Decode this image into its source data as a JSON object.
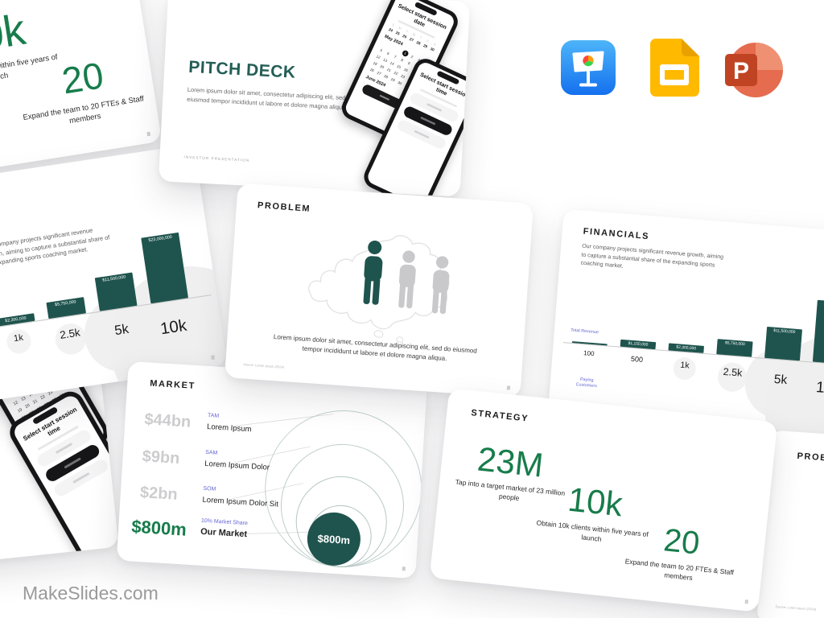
{
  "page": {
    "watermark": "MakeSlides.com"
  },
  "colors": {
    "heading_teal": "#235e56",
    "stat_green": "#177c4b",
    "bar_teal": "#1f544e",
    "label_purple": "#6466d3",
    "value_gray": "#cdcdcf"
  },
  "icons": {
    "keynote": "apple-keynote",
    "google_slides": "google-slides",
    "powerpoint": "microsoft-powerpoint",
    "powerpoint_letter": "P"
  },
  "slides": {
    "cover": {
      "title": "PITCH DECK",
      "body": "Lorem ipsum dolor sit amet, consectetur adipiscing elit, sed do eiusmod tempor incididunt ut labore et dolore magna aliqua",
      "footer": "INVESTOR PRESENTATION",
      "phone_date": {
        "title": "Select start session date",
        "month_current": "May 2024",
        "month_next": "June 2024"
      },
      "phone_time": {
        "title": "Select start session time"
      }
    },
    "problem": {
      "title": "PROBLEM",
      "body": "Lorem ipsum dolor sit amet, consectetur adipiscing elit, sed do eiusmod tempor incididunt ut labore et dolore magna aliqua.",
      "source": "Source: Lorem Ipsum (2024)"
    },
    "financials": {
      "title": "FINANCIALS",
      "body": "Our company projects significant revenue growth, aiming to capture a substantial share of the expanding sports coaching market.",
      "y_label": "Total Revenue",
      "x_label": "Paying Customers",
      "chart_data": {
        "type": "bar",
        "categories": [
          "100",
          "500",
          "1k",
          "2.5k",
          "5k",
          "10k"
        ],
        "values": [
          230000,
          1150000,
          2300000,
          5750000,
          11500000,
          23000000
        ],
        "value_labels": [
          "$230,000",
          "$1,150,000",
          "$2,300,000",
          "$5,750,000",
          "$11,500,000",
          "$23,000,000"
        ],
        "xlabel": "Paying Customers",
        "ylabel": "Total Revenue"
      },
      "categories": [
        "100",
        "500",
        "1k",
        "2.5k",
        "5k",
        "10k"
      ],
      "values_numeric": [
        230000,
        1150000,
        2300000,
        5750000,
        11500000,
        23000000
      ],
      "value_labels": [
        "$230,000",
        "$1,150,000",
        "$2,300,000",
        "$5,750,000",
        "$11,500,000",
        "$23,000,000"
      ]
    },
    "market": {
      "title": "MARKET",
      "rows": [
        {
          "value": "$44bn",
          "tag": "TAM",
          "label": "Lorem Ipsum"
        },
        {
          "value": "$9bn",
          "tag": "SAM",
          "label": "Lorem Ipsum Dolor"
        },
        {
          "value": "$2bn",
          "tag": "SOM",
          "label": "Lorem Ipsum Dolor Sit"
        },
        {
          "value": "$800m",
          "tag": "10% Market Share",
          "label": "Our Market"
        }
      ],
      "bubble": "$800m"
    },
    "strategy": {
      "title": "STRATEGY",
      "stats": [
        {
          "value": "23M",
          "caption": "Tap into a target market of 23 million people"
        },
        {
          "value": "10k",
          "caption": "Obtain 10k clients within five years of launch"
        },
        {
          "value": "20",
          "caption": "Expand the team to 20 FTEs & Staff members"
        }
      ]
    }
  }
}
